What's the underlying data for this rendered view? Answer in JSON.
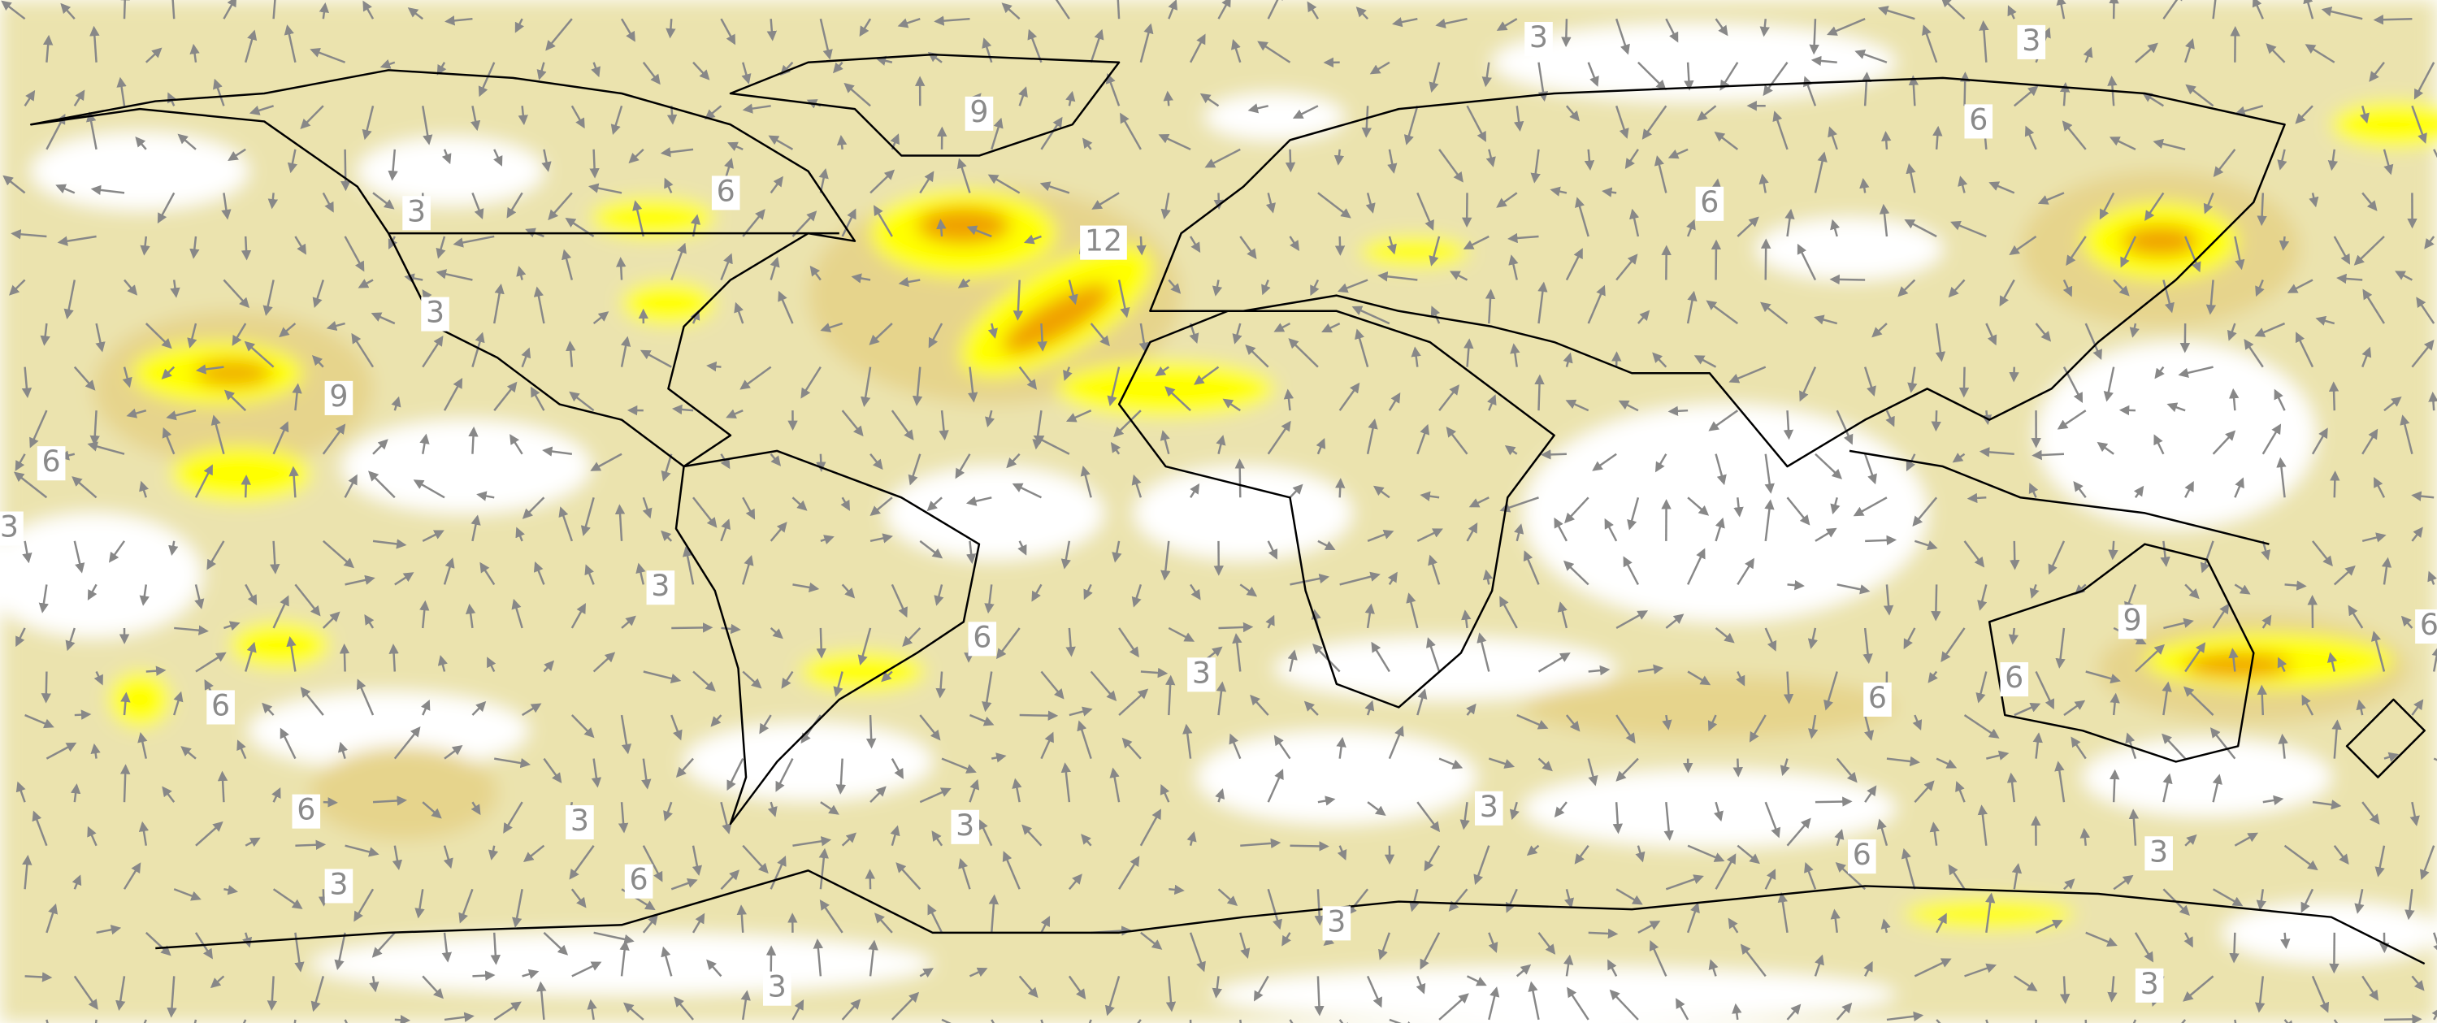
{
  "contour_labels": [
    3,
    3,
    9,
    6,
    6,
    3,
    6,
    12,
    3,
    9,
    6,
    3,
    3,
    9,
    6,
    3,
    6,
    6,
    6,
    6,
    3,
    3,
    3,
    6,
    3,
    3,
    6,
    3,
    3,
    3,
    6
  ]
}
